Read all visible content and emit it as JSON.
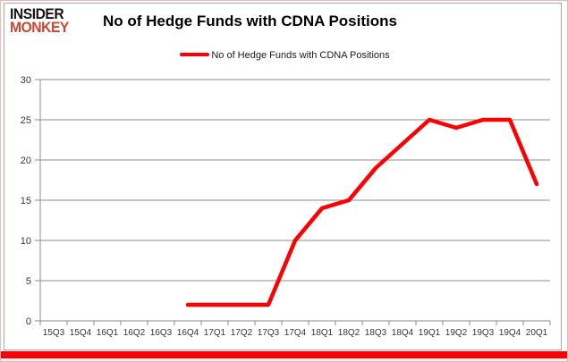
{
  "logo": {
    "line1": "INSIDER",
    "line2": "MONKEY"
  },
  "header": {
    "title": "No of Hedge Funds with CDNA Positions"
  },
  "legend": {
    "label": "No of Hedge Funds with CDNA Positions"
  },
  "colors": {
    "series": "#fe0000",
    "grid": "#8c8c8c",
    "axis": "#8c8c8c",
    "tick_text": "#363636",
    "title_text": "#000000",
    "logo_insider": "#141414",
    "logo_monkey": "#c9472f",
    "bottom_bar": "#fe0000",
    "outer_frame": "#f0b8b0",
    "chart_border": "#a6a6a6"
  },
  "chart_data": {
    "type": "line",
    "title": "No of Hedge Funds with CDNA Positions",
    "xlabel": "",
    "ylabel": "",
    "categories": [
      "15Q3",
      "15Q4",
      "16Q1",
      "16Q2",
      "16Q3",
      "16Q4",
      "17Q1",
      "17Q2",
      "17Q3",
      "17Q4",
      "18Q1",
      "18Q2",
      "18Q3",
      "18Q4",
      "19Q1",
      "19Q2",
      "19Q3",
      "19Q4",
      "20Q1"
    ],
    "series": [
      {
        "name": "No of Hedge Funds with CDNA Positions",
        "color": "#fe0000",
        "values": [
          null,
          null,
          null,
          null,
          null,
          2,
          2,
          2,
          2,
          10,
          14,
          15,
          19,
          22,
          25,
          24,
          25,
          25,
          17
        ]
      }
    ],
    "ylim": [
      0,
      30
    ],
    "yticks": [
      0,
      5,
      10,
      15,
      20,
      25,
      30
    ],
    "grid": true,
    "legend_position": "top-center"
  }
}
